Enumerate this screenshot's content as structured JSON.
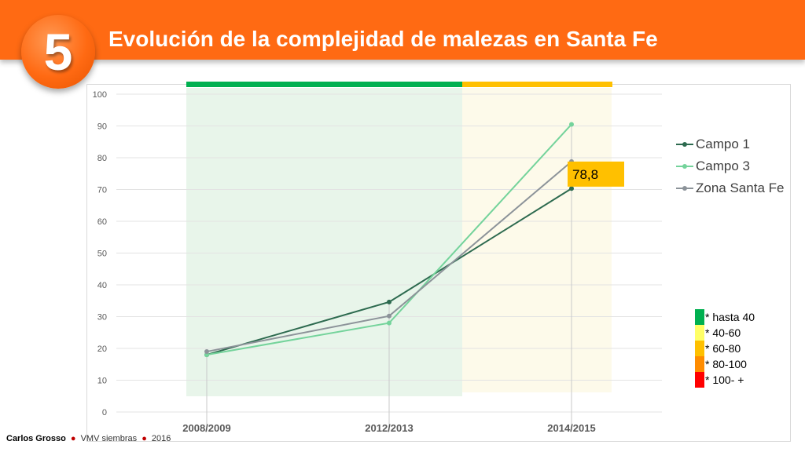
{
  "slide": {
    "number": "5",
    "title": "Evolución de la complejidad de malezas en Santa Fe"
  },
  "footer": {
    "author": "Carlos Grosso",
    "separator": "●",
    "org": "VMV siembras",
    "year": "2016"
  },
  "chart_data": {
    "type": "line",
    "categories": [
      "2008/2009",
      "2012/2013",
      "2014/2015"
    ],
    "ylim": [
      0,
      100
    ],
    "yticks": [
      0,
      10,
      20,
      30,
      40,
      50,
      60,
      70,
      80,
      90,
      100
    ],
    "grid": true,
    "legend_position": "right",
    "series": [
      {
        "name": "Campo 1",
        "values": [
          18,
          34.6,
          70.3
        ],
        "color": "#2d6a4f"
      },
      {
        "name": "Campo 3",
        "values": [
          18,
          28,
          90.5
        ],
        "color": "#74d39b"
      },
      {
        "name": "Zona Santa Fe",
        "values": [
          19,
          30.2,
          78.8
        ],
        "color": "#8c9399"
      }
    ],
    "annotation": {
      "text": "78,8",
      "series": "Zona Santa Fe",
      "category": "2014/2015",
      "color": "#ffc000"
    },
    "bands": [
      {
        "from": "2008/2009",
        "to": "2012/2013",
        "color": "#00b050",
        "fill": "#e8f5ea"
      },
      {
        "from": "2012/2013",
        "to": "2014/2015",
        "color": "#ffc000",
        "fill": "#fdfaea"
      }
    ]
  },
  "scale_legend": [
    {
      "label": "* hasta 40",
      "color": "#00b050"
    },
    {
      "label": "* 40-60",
      "color": "#ffff66"
    },
    {
      "label": "* 60-80",
      "color": "#ffc000"
    },
    {
      "label": "* 80-100",
      "color": "#ff8c00"
    },
    {
      "label": "* 100- +",
      "color": "#ff0000"
    }
  ]
}
